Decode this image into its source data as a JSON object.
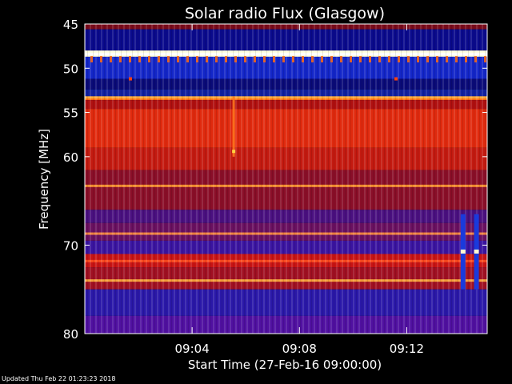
{
  "chart_data": {
    "type": "heatmap",
    "title": "Solar radio Flux (Glasgow)",
    "xlabel": "Start Time (27-Feb-16 09:00:00)",
    "ylabel": "Frequency [MHz]",
    "x_range_minutes": [
      0,
      15
    ],
    "x_ticks": [
      {
        "minutes": 4,
        "label": "09:04"
      },
      {
        "minutes": 8,
        "label": "09:08"
      },
      {
        "minutes": 12,
        "label": "09:12"
      }
    ],
    "y_range_mhz": [
      45,
      80
    ],
    "y_axis_inverted": true,
    "y_ticks": [
      {
        "mhz": 45,
        "label": "45"
      },
      {
        "mhz": 50,
        "label": "50"
      },
      {
        "mhz": 55,
        "label": "55"
      },
      {
        "mhz": 60,
        "label": "60"
      },
      {
        "mhz": 70,
        "label": "70"
      },
      {
        "mhz": 80,
        "label": "80"
      }
    ],
    "bands_mhz": [
      {
        "from": 45.0,
        "to": 45.6,
        "color": "#7a0a1a"
      },
      {
        "from": 45.6,
        "to": 48.0,
        "color": "#0a0a8c"
      },
      {
        "from": 48.0,
        "to": 48.7,
        "color": "#ffffe0"
      },
      {
        "from": 48.7,
        "to": 51.2,
        "color": "#1326c8"
      },
      {
        "from": 51.2,
        "to": 52.4,
        "color": "#0a0a78"
      },
      {
        "from": 52.4,
        "to": 53.2,
        "color": "#1020a0"
      },
      {
        "from": 53.2,
        "to": 53.6,
        "color": "#ff6a10"
      },
      {
        "from": 53.6,
        "to": 54.6,
        "color": "#b01010"
      },
      {
        "from": 54.6,
        "to": 59.0,
        "color": "#e02a0e"
      },
      {
        "from": 59.0,
        "to": 61.5,
        "color": "#c41a10"
      },
      {
        "from": 61.5,
        "to": 66.0,
        "color": "#8a0e28"
      },
      {
        "from": 66.0,
        "to": 67.5,
        "color": "#4a1080"
      },
      {
        "from": 67.5,
        "to": 69.5,
        "color": "#6a1060"
      },
      {
        "from": 69.5,
        "to": 71.0,
        "color": "#3a14a0"
      },
      {
        "from": 71.0,
        "to": 72.5,
        "color": "#c81414"
      },
      {
        "from": 72.5,
        "to": 75.0,
        "color": "#a01022"
      },
      {
        "from": 75.0,
        "to": 78.0,
        "color": "#2a18a8"
      },
      {
        "from": 78.0,
        "to": 80.0,
        "color": "#5010a0"
      }
    ],
    "bright_lines_mhz": [
      {
        "mhz": 48.4,
        "color": "#ffffff"
      },
      {
        "mhz": 53.3,
        "color": "#ffb040"
      },
      {
        "mhz": 63.3,
        "color": "#ff9a30"
      },
      {
        "mhz": 68.7,
        "color": "#ff9040"
      },
      {
        "mhz": 71.8,
        "color": "#ff5020"
      },
      {
        "mhz": 74.0,
        "color": "#ffb040"
      }
    ],
    "burst_minutes": 5.55,
    "interference_minutes": [
      14.1,
      14.6
    ]
  },
  "footer": {
    "updated": "Updated Thu Feb 22 01:23:23 2018"
  }
}
